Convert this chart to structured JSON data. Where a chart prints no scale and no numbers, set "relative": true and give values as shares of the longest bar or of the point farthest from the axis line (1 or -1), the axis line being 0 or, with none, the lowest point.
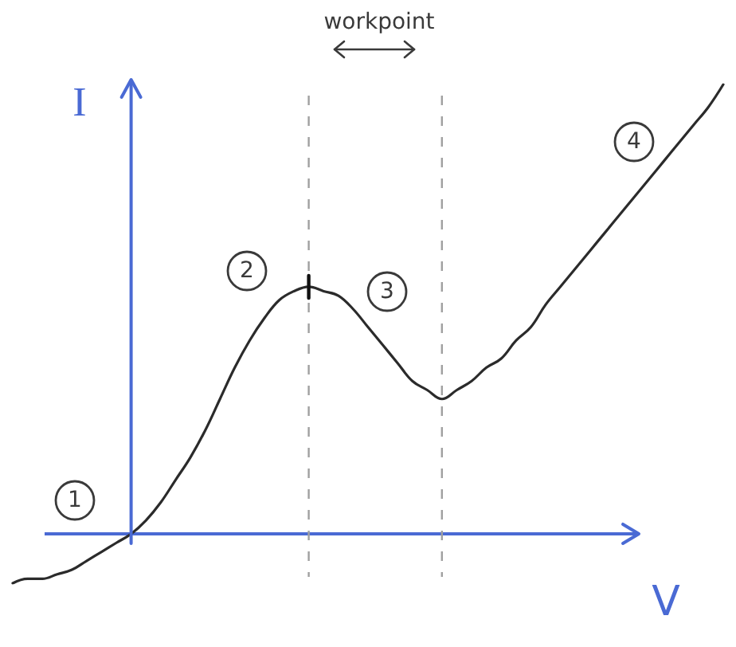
{
  "chart_data": {
    "type": "line",
    "xlabel": "V",
    "ylabel": "I",
    "relative": true,
    "marker": "none",
    "categories": [
      null,
      null,
      null,
      null,
      null,
      null,
      null,
      null,
      null,
      null,
      null,
      null,
      null,
      null,
      null,
      null,
      null,
      null,
      null,
      null,
      null,
      null,
      null,
      null,
      null,
      null,
      null,
      null,
      null,
      null,
      null,
      null,
      null,
      null,
      null,
      null,
      null,
      null,
      null,
      null,
      null,
      null,
      null,
      null,
      null,
      null,
      null,
      null,
      null
    ],
    "series": [
      {
        "color": "#2b2b2b",
        "values": [
          -0.11,
          -0.1,
          -0.1,
          -0.09,
          -0.08,
          -0.06,
          -0.04,
          -0.02,
          0,
          0.03,
          0.07,
          0.12,
          0.17,
          0.23,
          0.3,
          0.37,
          0.43,
          0.48,
          0.52,
          0.54,
          0.55,
          0.54,
          0.53,
          0.5,
          0.46,
          0.42,
          0.38,
          0.34,
          0.32,
          0.3,
          0.32,
          0.34,
          0.37,
          0.39,
          0.43,
          0.46,
          0.51,
          0.55,
          0.59,
          0.63,
          0.67,
          0.71,
          0.75,
          0.79,
          0.83,
          0.87,
          0.91,
          0.95,
          1
        ]
      }
    ],
    "ref_lines": [
      {
        "axis": "y",
        "value": 0,
        "color": "#4a6ad4",
        "line_style": "solid"
      }
    ],
    "annotations": [
      "workpoint",
      "1",
      "2",
      "3",
      "4"
    ]
  }
}
